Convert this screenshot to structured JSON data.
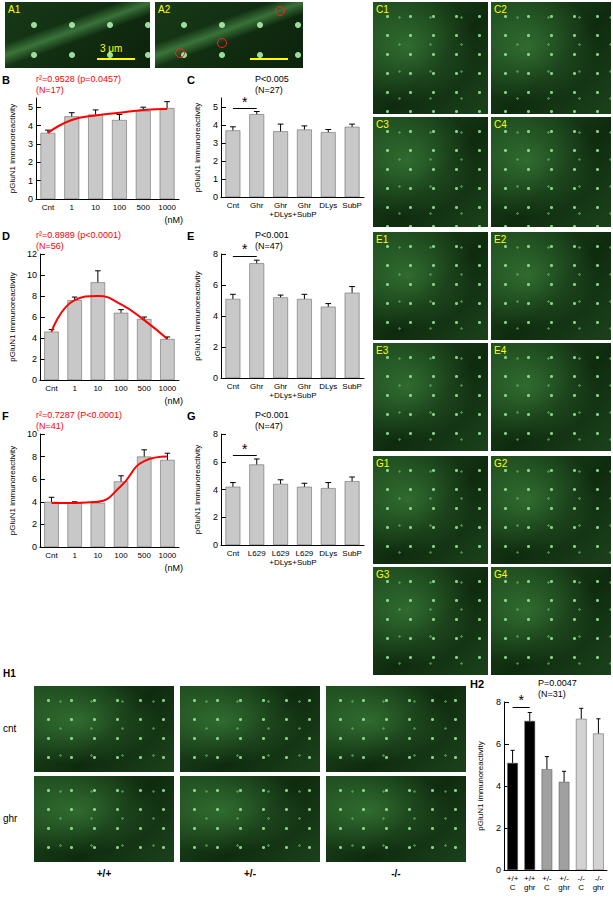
{
  "A_panels": [
    "A1",
    "A2"
  ],
  "scale_bar": "3 μm",
  "C_panels": [
    "C1",
    "C2",
    "C3",
    "C4"
  ],
  "E_panels": [
    "E1",
    "E2",
    "E3",
    "E4"
  ],
  "G_panels": [
    "G1",
    "G2",
    "G3",
    "G4"
  ],
  "H1": {
    "label": "H1",
    "rows": [
      "cnt",
      "ghr"
    ],
    "columns": [
      "+/+",
      "+/-",
      "-/-"
    ]
  },
  "chart_data": [
    {
      "panel": "B",
      "type": "bar",
      "y_label": "pGluN1 immunoreactivity",
      "x_label": "(nM)",
      "grid": false,
      "categories": [
        "Cnt",
        "1",
        "10",
        "100",
        "500",
        "1000"
      ],
      "ylim": [
        0,
        5.5
      ],
      "yticks": [
        0,
        1,
        2,
        3,
        4,
        5
      ],
      "series": [
        {
          "type": "bar",
          "color": "#c8c8c8",
          "values": [
            3.6,
            4.5,
            4.6,
            4.3,
            4.8,
            4.95
          ],
          "errors": [
            0.15,
            0.2,
            0.25,
            0.3,
            0.2,
            0.35
          ]
        },
        {
          "type": "line",
          "color": "#ff0000",
          "line_style": "solid",
          "values": [
            3.6,
            4.3,
            4.55,
            4.7,
            4.85,
            4.9
          ]
        }
      ],
      "annotations": [
        {
          "text": "r²=0.9528 (p=0.0457)",
          "color": "#ff0000"
        },
        {
          "text": "(N=17)",
          "color": "#ff0000"
        }
      ]
    },
    {
      "panel": "C",
      "type": "bar",
      "y_label": "pGluN1 immunoreactivity",
      "grid": false,
      "categories": [
        "Cnt",
        "Ghr",
        "Ghr\n+DLys",
        "Ghr\n+SubP",
        "DLys",
        "SubP"
      ],
      "ylim": [
        0,
        5.5
      ],
      "yticks": [
        0,
        1,
        2,
        3,
        4,
        5
      ],
      "series": [
        {
          "type": "bar",
          "color": "#c8c8c8",
          "values": [
            3.7,
            4.6,
            3.65,
            3.75,
            3.6,
            3.9
          ],
          "errors": [
            0.2,
            0.15,
            0.4,
            0.2,
            0.15,
            0.15
          ]
        }
      ],
      "significance": {
        "between": [
          "Cnt",
          "Ghr"
        ],
        "label": "*"
      },
      "annotations": [
        {
          "text": "P<0.005",
          "color": "#000000"
        },
        {
          "text": "(N=27)",
          "color": "#000000"
        }
      ]
    },
    {
      "panel": "D",
      "type": "bar",
      "y_label": "pGluN1 immunoreactivity",
      "x_label": "(nM)",
      "grid": false,
      "categories": [
        "Cnt",
        "1",
        "10",
        "100",
        "500",
        "1000"
      ],
      "ylim": [
        0,
        12
      ],
      "yticks": [
        0,
        2,
        4,
        6,
        8,
        10,
        12
      ],
      "series": [
        {
          "type": "bar",
          "color": "#c8c8c8",
          "values": [
            4.6,
            7.6,
            9.3,
            6.4,
            5.8,
            3.9
          ],
          "errors": [
            0.2,
            0.3,
            1.1,
            0.3,
            0.2,
            0.2
          ]
        },
        {
          "type": "line",
          "color": "#ff0000",
          "line_style": "solid",
          "values": [
            4.6,
            7.6,
            8.0,
            7.2,
            5.7,
            3.9
          ]
        }
      ],
      "annotations": [
        {
          "text": "r²=0.8989 (p<0.0001)",
          "color": "#ff0000"
        },
        {
          "text": "(N=56)",
          "color": "#ff0000"
        }
      ]
    },
    {
      "panel": "E",
      "type": "bar",
      "y_label": "pGluN1 immunoreactivity",
      "grid": false,
      "categories": [
        "Cnt",
        "Ghr",
        "Ghr\n+DLys",
        "Ghr\n+SubP",
        "DLys",
        "SubP"
      ],
      "ylim": [
        0,
        8
      ],
      "yticks": [
        0,
        2,
        4,
        6,
        8
      ],
      "series": [
        {
          "type": "bar",
          "color": "#c8c8c8",
          "values": [
            5.1,
            7.4,
            5.2,
            5.1,
            4.6,
            5.5
          ],
          "errors": [
            0.3,
            0.2,
            0.15,
            0.3,
            0.2,
            0.4
          ]
        }
      ],
      "significance": {
        "between": [
          "Cnt",
          "Ghr"
        ],
        "label": "*"
      },
      "annotations": [
        {
          "text": "P<0.001",
          "color": "#000000"
        },
        {
          "text": "(N=47)",
          "color": "#000000"
        }
      ]
    },
    {
      "panel": "F",
      "type": "bar",
      "y_label": "pGluN1 immunoreactivity",
      "x_label": "(nM)",
      "grid": false,
      "categories": [
        "Cnt",
        "1",
        "10",
        "100",
        "500",
        "1000"
      ],
      "ylim": [
        0,
        10
      ],
      "yticks": [
        0,
        2,
        4,
        6,
        8,
        10
      ],
      "series": [
        {
          "type": "bar",
          "color": "#c8c8c8",
          "values": [
            4.0,
            3.9,
            3.9,
            5.8,
            8.0,
            7.7
          ],
          "errors": [
            0.4,
            0.1,
            0.1,
            0.5,
            0.6,
            0.6
          ]
        },
        {
          "type": "line",
          "color": "#ff0000",
          "line_style": "solid",
          "values": [
            3.9,
            3.9,
            4.0,
            5.4,
            7.6,
            8.0
          ]
        }
      ],
      "annotations": [
        {
          "text": "r²=0.7287 (P<0.0001)",
          "color": "#ff0000"
        },
        {
          "text": "(N=41)",
          "color": "#ff0000"
        }
      ]
    },
    {
      "panel": "G",
      "type": "bar",
      "y_label": "pGluN1 immunoreactivity",
      "grid": false,
      "categories": [
        "Cnt",
        "L629",
        "L629\n+DLys",
        "L629\n+SubP",
        "DLys",
        "SubP"
      ],
      "ylim": [
        0,
        8
      ],
      "yticks": [
        0,
        2,
        4,
        6,
        8
      ],
      "series": [
        {
          "type": "bar",
          "color": "#c8c8c8",
          "values": [
            4.2,
            5.8,
            4.4,
            4.2,
            4.1,
            4.6
          ],
          "errors": [
            0.3,
            0.4,
            0.3,
            0.25,
            0.4,
            0.3
          ]
        }
      ],
      "significance": {
        "between": [
          "Cnt",
          "L629"
        ],
        "label": "*"
      },
      "annotations": [
        {
          "text": "P<0.001",
          "color": "#000000"
        },
        {
          "text": "(N=47)",
          "color": "#000000"
        }
      ]
    },
    {
      "panel": "H2",
      "type": "bar",
      "y_label": "pGluN1 immunoreactivity",
      "grid": false,
      "categories": [
        "+/+\nC",
        "+/+\nghr",
        "+/-\nC",
        "+/-\nghr",
        "-/-\nC",
        "-/-\nghr"
      ],
      "ylim": [
        0,
        8
      ],
      "yticks": [
        0,
        2,
        4,
        6,
        8
      ],
      "series": [
        {
          "type": "bar",
          "colors": [
            "#000000",
            "#000000",
            "#a0a0a0",
            "#a0a0a0",
            "#d3d3d3",
            "#d3d3d3"
          ],
          "values": [
            5.1,
            7.1,
            4.8,
            4.2,
            7.2,
            6.5
          ],
          "errors": [
            0.6,
            0.4,
            0.6,
            0.5,
            0.5,
            0.7
          ]
        }
      ],
      "significance": {
        "between": [
          "+/+\nC",
          "+/+\nghr"
        ],
        "label": "*"
      },
      "annotations": [
        {
          "text": "P=0.0047",
          "color": "#000000"
        },
        {
          "text": "(N=31)",
          "color": "#000000"
        }
      ]
    }
  ]
}
